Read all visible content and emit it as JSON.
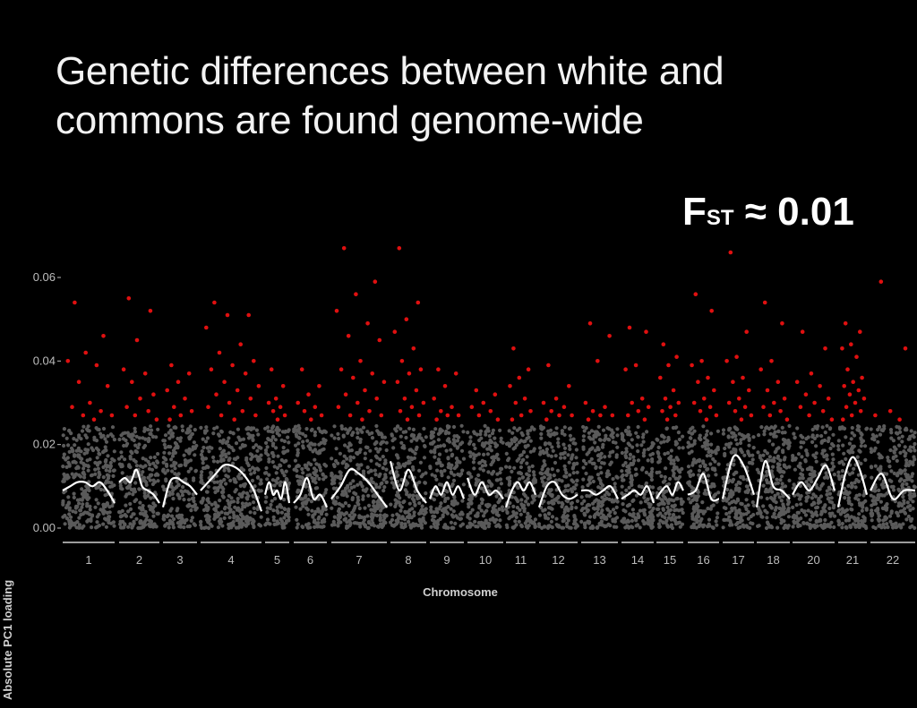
{
  "slide": {
    "title": "Genetic differences between white and commons are found genome-wide",
    "fst_main": "F",
    "fst_sub": "ST",
    "fst_value": " ≈ 0.01"
  },
  "chart_data": {
    "type": "scatter",
    "xlabel": "Chromosome",
    "ylabel": "Absolute PC1 loading",
    "ylim": [
      0,
      0.06
    ],
    "y_ticks": [
      "0.00",
      "0.02",
      "0.04",
      "0.06"
    ],
    "grid": false,
    "colors": {
      "background": "#000000",
      "background_points": "#5a5a5a",
      "outlier_points": "#e01010",
      "trend_line": "#ffffff"
    },
    "outlier_threshold": 0.025,
    "categories": [
      "1",
      "2",
      "3",
      "4",
      "5",
      "6",
      "7",
      "8",
      "9",
      "10",
      "11",
      "12",
      "13",
      "14",
      "15",
      "16",
      "17",
      "18",
      "20",
      "21",
      "22"
    ],
    "chromosome_outliers": [
      {
        "chromosome": "1",
        "max": 0.054,
        "values": [
          0.054,
          0.046,
          0.042,
          0.04,
          0.039,
          0.035,
          0.034,
          0.03,
          0.029,
          0.028,
          0.027,
          0.027,
          0.026
        ]
      },
      {
        "chromosome": "2",
        "max": 0.055,
        "values": [
          0.055,
          0.052,
          0.045,
          0.038,
          0.037,
          0.035,
          0.032,
          0.031,
          0.029,
          0.028,
          0.027,
          0.026
        ]
      },
      {
        "chromosome": "3",
        "max": 0.039,
        "values": [
          0.039,
          0.037,
          0.035,
          0.033,
          0.031,
          0.029,
          0.028,
          0.027,
          0.026
        ]
      },
      {
        "chromosome": "4",
        "max": 0.054,
        "values": [
          0.054,
          0.051,
          0.051,
          0.048,
          0.044,
          0.042,
          0.04,
          0.039,
          0.038,
          0.037,
          0.035,
          0.034,
          0.033,
          0.032,
          0.031,
          0.03,
          0.029,
          0.028,
          0.027,
          0.027,
          0.026
        ]
      },
      {
        "chromosome": "5",
        "max": 0.038,
        "values": [
          0.038,
          0.034,
          0.031,
          0.03,
          0.029,
          0.028,
          0.027,
          0.026
        ]
      },
      {
        "chromosome": "6",
        "max": 0.038,
        "values": [
          0.038,
          0.034,
          0.032,
          0.03,
          0.029,
          0.028,
          0.027,
          0.026
        ]
      },
      {
        "chromosome": "7",
        "max": 0.067,
        "values": [
          0.067,
          0.059,
          0.056,
          0.052,
          0.049,
          0.046,
          0.045,
          0.04,
          0.038,
          0.037,
          0.036,
          0.035,
          0.033,
          0.032,
          0.031,
          0.03,
          0.029,
          0.028,
          0.027,
          0.027,
          0.026
        ]
      },
      {
        "chromosome": "8",
        "max": 0.067,
        "values": [
          0.067,
          0.054,
          0.05,
          0.047,
          0.043,
          0.04,
          0.038,
          0.037,
          0.035,
          0.033,
          0.031,
          0.03,
          0.029,
          0.028,
          0.027,
          0.026
        ]
      },
      {
        "chromosome": "9",
        "max": 0.038,
        "values": [
          0.038,
          0.037,
          0.034,
          0.031,
          0.029,
          0.028,
          0.027,
          0.027,
          0.026
        ]
      },
      {
        "chromosome": "10",
        "max": 0.033,
        "values": [
          0.033,
          0.032,
          0.03,
          0.029,
          0.028,
          0.027,
          0.026
        ]
      },
      {
        "chromosome": "11",
        "max": 0.043,
        "values": [
          0.043,
          0.038,
          0.036,
          0.034,
          0.031,
          0.03,
          0.028,
          0.027,
          0.026
        ]
      },
      {
        "chromosome": "12",
        "max": 0.039,
        "values": [
          0.039,
          0.034,
          0.031,
          0.03,
          0.029,
          0.028,
          0.027,
          0.027,
          0.026
        ]
      },
      {
        "chromosome": "13",
        "max": 0.049,
        "values": [
          0.049,
          0.046,
          0.04,
          0.03,
          0.029,
          0.028,
          0.027,
          0.027,
          0.026
        ]
      },
      {
        "chromosome": "14",
        "max": 0.048,
        "values": [
          0.048,
          0.047,
          0.039,
          0.038,
          0.031,
          0.03,
          0.029,
          0.028,
          0.027,
          0.026
        ]
      },
      {
        "chromosome": "15",
        "max": 0.044,
        "values": [
          0.044,
          0.041,
          0.039,
          0.036,
          0.033,
          0.031,
          0.03,
          0.029,
          0.028,
          0.027,
          0.026
        ]
      },
      {
        "chromosome": "16",
        "max": 0.056,
        "values": [
          0.056,
          0.052,
          0.04,
          0.039,
          0.036,
          0.035,
          0.033,
          0.031,
          0.03,
          0.029,
          0.028,
          0.027,
          0.026
        ]
      },
      {
        "chromosome": "17",
        "max": 0.066,
        "values": [
          0.066,
          0.047,
          0.041,
          0.04,
          0.036,
          0.035,
          0.033,
          0.031,
          0.03,
          0.029,
          0.028,
          0.027,
          0.026
        ]
      },
      {
        "chromosome": "18",
        "max": 0.054,
        "values": [
          0.054,
          0.049,
          0.04,
          0.038,
          0.035,
          0.033,
          0.031,
          0.03,
          0.029,
          0.028,
          0.027,
          0.026
        ]
      },
      {
        "chromosome": "20",
        "max": 0.047,
        "values": [
          0.047,
          0.043,
          0.037,
          0.035,
          0.034,
          0.032,
          0.031,
          0.03,
          0.029,
          0.028,
          0.027,
          0.026
        ]
      },
      {
        "chromosome": "21",
        "max": 0.049,
        "values": [
          0.049,
          0.047,
          0.044,
          0.043,
          0.041,
          0.038,
          0.036,
          0.035,
          0.034,
          0.033,
          0.032,
          0.031,
          0.03,
          0.029,
          0.028,
          0.027,
          0.026
        ]
      },
      {
        "chromosome": "22",
        "max": 0.059,
        "values": [
          0.059,
          0.043,
          0.028,
          0.027,
          0.026
        ]
      }
    ],
    "trend_line": {
      "name": "",
      "description_values_by_chromosome": [
        {
          "chromosome": "1",
          "values": [
            0.009,
            0.01,
            0.011,
            0.011,
            0.01,
            0.011,
            0.009,
            0.006
          ]
        },
        {
          "chromosome": "2",
          "values": [
            0.011,
            0.012,
            0.011,
            0.014,
            0.01,
            0.009,
            0.008,
            0.006
          ]
        },
        {
          "chromosome": "3",
          "values": [
            0.005,
            0.011,
            0.012,
            0.011,
            0.01,
            0.008
          ]
        },
        {
          "chromosome": "4",
          "values": [
            0.009,
            0.011,
            0.013,
            0.015,
            0.015,
            0.014,
            0.012,
            0.009,
            0.004
          ]
        },
        {
          "chromosome": "5",
          "values": [
            0.008,
            0.011,
            0.008,
            0.009,
            0.007,
            0.011,
            0.006
          ]
        },
        {
          "chromosome": "6",
          "values": [
            0.006,
            0.008,
            0.012,
            0.007,
            0.008,
            0.005
          ]
        },
        {
          "chromosome": "7",
          "values": [
            0.007,
            0.01,
            0.014,
            0.013,
            0.011,
            0.008,
            0.005
          ]
        },
        {
          "chromosome": "8",
          "values": [
            0.016,
            0.009,
            0.014,
            0.009,
            0.006
          ]
        },
        {
          "chromosome": "9",
          "values": [
            0.007,
            0.01,
            0.008,
            0.011,
            0.008,
            0.01,
            0.007
          ]
        },
        {
          "chromosome": "10",
          "values": [
            0.012,
            0.008,
            0.011,
            0.008,
            0.009,
            0.007
          ]
        },
        {
          "chromosome": "11",
          "values": [
            0.005,
            0.009,
            0.011,
            0.009,
            0.011,
            0.008
          ]
        },
        {
          "chromosome": "12",
          "values": [
            0.005,
            0.01,
            0.011,
            0.008,
            0.007,
            0.008
          ]
        },
        {
          "chromosome": "13",
          "values": [
            0.009,
            0.009,
            0.008,
            0.009,
            0.01,
            0.007
          ]
        },
        {
          "chromosome": "14",
          "values": [
            0.007,
            0.008,
            0.009,
            0.008,
            0.01,
            0.006
          ]
        },
        {
          "chromosome": "15",
          "values": [
            0.007,
            0.009,
            0.01,
            0.008,
            0.011,
            0.009
          ]
        },
        {
          "chromosome": "16",
          "values": [
            0.008,
            0.009,
            0.013,
            0.007,
            0.007
          ]
        },
        {
          "chromosome": "17",
          "values": [
            0.007,
            0.017,
            0.015,
            0.008
          ]
        },
        {
          "chromosome": "18",
          "values": [
            0.005,
            0.016,
            0.01,
            0.009,
            0.007
          ]
        },
        {
          "chromosome": "20",
          "values": [
            0.008,
            0.011,
            0.009,
            0.012,
            0.015,
            0.009
          ]
        },
        {
          "chromosome": "21",
          "values": [
            0.005,
            0.013,
            0.017,
            0.014,
            0.008
          ]
        },
        {
          "chromosome": "22",
          "values": [
            0.009,
            0.013,
            0.007,
            0.009,
            0.009
          ]
        }
      ]
    }
  }
}
